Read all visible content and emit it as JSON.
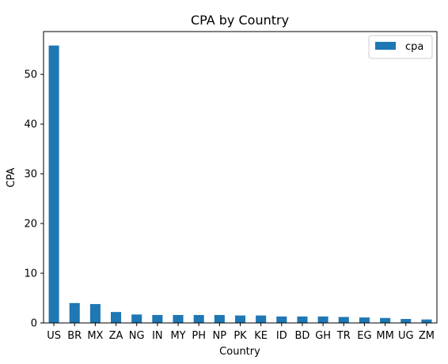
{
  "chart_data": {
    "type": "bar",
    "title": "CPA by Country",
    "xlabel": "Country",
    "ylabel": "CPA",
    "categories": [
      "US",
      "BR",
      "MX",
      "ZA",
      "NG",
      "IN",
      "MY",
      "PH",
      "NP",
      "PK",
      "KE",
      "ID",
      "BD",
      "GH",
      "TR",
      "EG",
      "MM",
      "UG",
      "ZM"
    ],
    "series": [
      {
        "name": "cpa",
        "color": "#1f77b4",
        "values": [
          55.8,
          4.0,
          3.8,
          2.2,
          1.7,
          1.6,
          1.6,
          1.6,
          1.6,
          1.5,
          1.5,
          1.3,
          1.3,
          1.3,
          1.2,
          1.1,
          1.0,
          0.8,
          0.7
        ]
      }
    ],
    "ylim": [
      0,
      58.6
    ],
    "yticks": [
      0,
      10,
      20,
      30,
      40,
      50
    ],
    "legend_position": "top-right",
    "grid": false
  }
}
